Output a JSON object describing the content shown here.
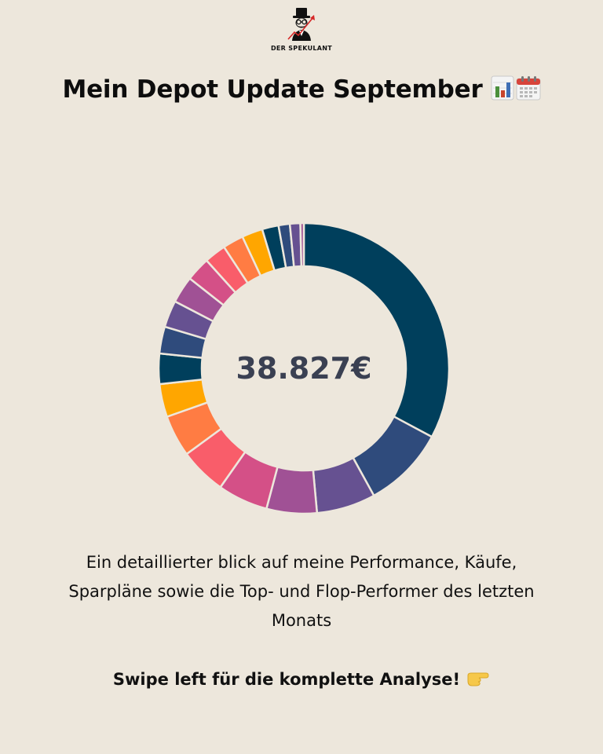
{
  "brand": {
    "name": "DER SPEKULANT"
  },
  "header": {
    "title": "Mein Depot Update September",
    "icons": [
      "bar-chart-icon",
      "calendar-icon"
    ]
  },
  "chart_data": {
    "type": "pie",
    "style": "donut",
    "center_label": "38.827€",
    "values": [
      34.0,
      9.5,
      6.8,
      5.8,
      5.8,
      5.4,
      4.8,
      3.8,
      3.5,
      3.1,
      3.1,
      3.1,
      2.8,
      2.5,
      2.4,
      2.4,
      1.9,
      1.3,
      1.2,
      0.4
    ],
    "colors": [
      "#003f5c",
      "#2f4b7c",
      "#665191",
      "#a05195",
      "#d45087",
      "#f95d6a",
      "#ff7c43",
      "#ffa600",
      "#003f5c",
      "#2f4b7c",
      "#665191",
      "#a05195",
      "#d45087",
      "#f95d6a",
      "#ff7c43",
      "#ffa600",
      "#003f5c",
      "#2f4b7c",
      "#665191",
      "#a05195"
    ]
  },
  "description": {
    "lines": [
      "Ein detaillierter blick auf meine Performance, Käufe,",
      "Sparpläne sowie die Top- und Flop-Performer des letzten",
      "Monats"
    ]
  },
  "cta": {
    "text": "Swipe left für die komplette Analyse!",
    "icon": "pointing-right-icon"
  }
}
